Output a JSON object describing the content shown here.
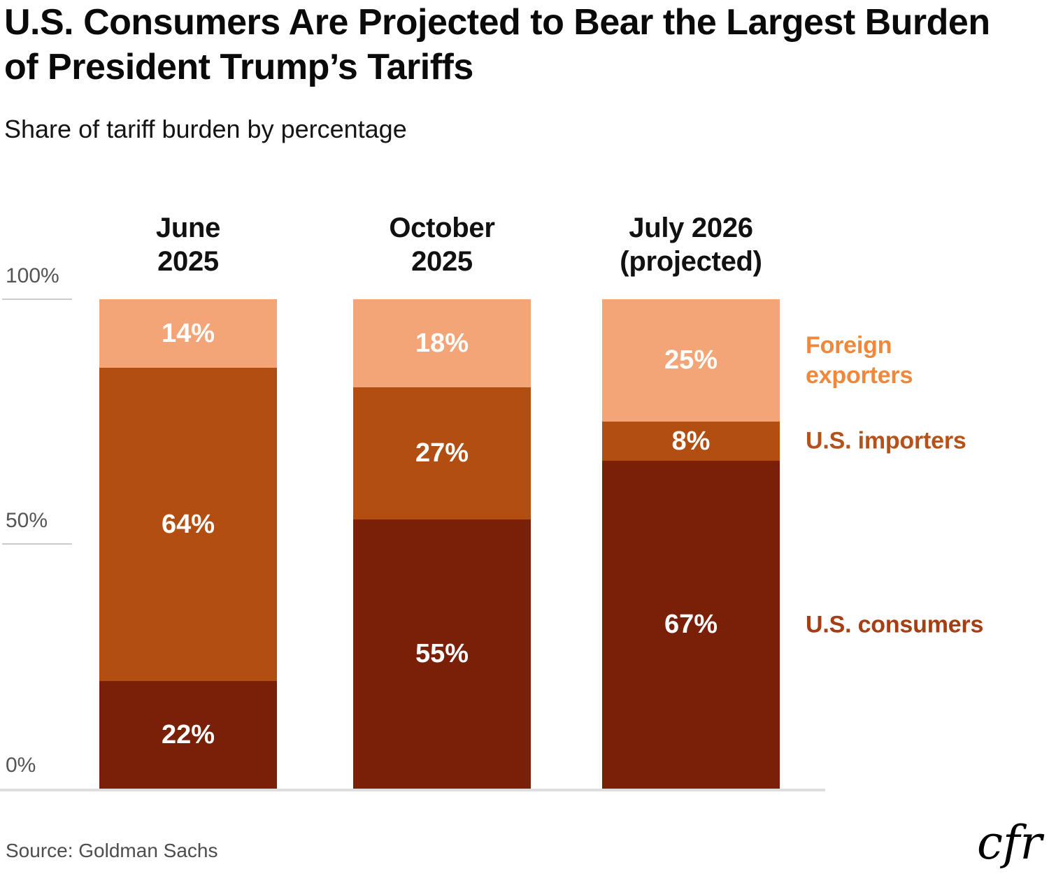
{
  "header": {
    "title": "U.S. Consumers Are Projected to Bear the Largest Burden of President Trump’s Tariffs",
    "subtitle": "Share of tariff burden by percentage"
  },
  "chart_data": {
    "type": "bar",
    "stacked": true,
    "title": "U.S. Consumers Are Projected to Bear the Largest Burden of President Trump’s Tariffs",
    "subtitle": "Share of tariff burden by percentage",
    "unit": "%",
    "ylim": [
      0,
      100
    ],
    "grid": false,
    "legend_position": "right",
    "categories": [
      {
        "label_lines": [
          "June",
          "2025"
        ]
      },
      {
        "label_lines": [
          "October",
          "2025"
        ]
      },
      {
        "label_lines": [
          "July 2026",
          "(projected)"
        ]
      }
    ],
    "series": [
      {
        "name": "Foreign exporters",
        "stack_position": "top",
        "color": "#F4A578",
        "legend_color": "#F0883C",
        "legend_lines": [
          "Foreign",
          "exporters"
        ],
        "values": [
          14,
          18,
          25
        ]
      },
      {
        "name": "U.S. importers",
        "stack_position": "middle",
        "color": "#B34E12",
        "legend_color": "#B5521A",
        "legend_lines": [
          "U.S. importers"
        ],
        "values": [
          64,
          27,
          8
        ]
      },
      {
        "name": "U.S. consumers",
        "stack_position": "bottom",
        "color": "#7A1F08",
        "legend_color": "#A53E13",
        "legend_lines": [
          "U.S. consumers"
        ],
        "values": [
          22,
          55,
          67
        ]
      }
    ],
    "yticks": [
      {
        "label": "100%",
        "value": 100
      },
      {
        "label": "50%",
        "value": 50
      },
      {
        "label": "0%",
        "value": 0
      }
    ]
  },
  "footer": {
    "source": "Source: Goldman Sachs",
    "logo_text": "cfr"
  }
}
